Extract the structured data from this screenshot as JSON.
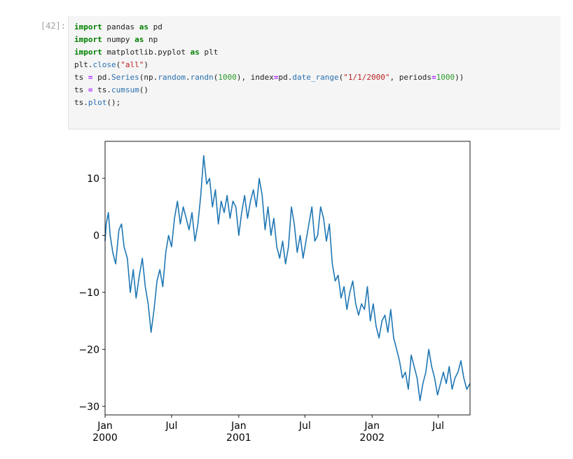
{
  "cell": {
    "prompt": "[42]:",
    "code_lines": [
      [
        {
          "t": "import",
          "c": "kw"
        },
        {
          "t": " pandas "
        },
        {
          "t": "as",
          "c": "kw"
        },
        {
          "t": " pd"
        }
      ],
      [
        {
          "t": "import",
          "c": "kw"
        },
        {
          "t": " numpy "
        },
        {
          "t": "as",
          "c": "kw"
        },
        {
          "t": " np"
        }
      ],
      [
        {
          "t": "import",
          "c": "kw"
        },
        {
          "t": " matplotlib.pyplot "
        },
        {
          "t": "as",
          "c": "kw"
        },
        {
          "t": " plt"
        }
      ],
      [
        {
          "t": "plt."
        },
        {
          "t": "close",
          "c": "fn"
        },
        {
          "t": "("
        },
        {
          "t": "\"all\"",
          "c": "str"
        },
        {
          "t": ")"
        }
      ],
      [
        {
          "t": "ts "
        },
        {
          "t": "=",
          "c": "op"
        },
        {
          "t": " pd."
        },
        {
          "t": "Series",
          "c": "fn"
        },
        {
          "t": "(np."
        },
        {
          "t": "random",
          "c": "fn"
        },
        {
          "t": "."
        },
        {
          "t": "randn",
          "c": "fn"
        },
        {
          "t": "("
        },
        {
          "t": "1000",
          "c": "num"
        },
        {
          "t": "), index"
        },
        {
          "t": "=",
          "c": "op"
        },
        {
          "t": "pd."
        },
        {
          "t": "date_range",
          "c": "fn"
        },
        {
          "t": "("
        },
        {
          "t": "\"1/1/2000\"",
          "c": "str"
        },
        {
          "t": ", periods"
        },
        {
          "t": "=",
          "c": "op"
        },
        {
          "t": "1000",
          "c": "num"
        },
        {
          "t": "))"
        }
      ],
      [
        {
          "t": "ts "
        },
        {
          "t": "=",
          "c": "op"
        },
        {
          "t": " ts."
        },
        {
          "t": "cumsum",
          "c": "fn"
        },
        {
          "t": "()"
        }
      ],
      [
        {
          "t": "ts."
        },
        {
          "t": "plot",
          "c": "fn"
        },
        {
          "t": "();"
        }
      ]
    ]
  },
  "chart_data": {
    "type": "line",
    "line_color": "#1f77b4",
    "xlim": [
      "2000-01-01",
      "2002-09-26"
    ],
    "ylim": [
      -31.5,
      16.5
    ],
    "y_ticks": [
      10,
      0,
      -10,
      -20,
      -30
    ],
    "y_tick_labels": [
      "10",
      "0",
      "−10",
      "−20",
      "−30"
    ],
    "x_ticks": [
      {
        "date": "2000-01-01",
        "label": "Jan",
        "sublabel": "2000"
      },
      {
        "date": "2000-07-01",
        "label": "Jul",
        "sublabel": ""
      },
      {
        "date": "2001-01-01",
        "label": "Jan",
        "sublabel": "2001"
      },
      {
        "date": "2001-07-01",
        "label": "Jul",
        "sublabel": ""
      },
      {
        "date": "2002-01-01",
        "label": "Jan",
        "sublabel": "2002"
      },
      {
        "date": "2002-07-01",
        "label": "Jul",
        "sublabel": ""
      }
    ],
    "series": [
      {
        "x": [
          "2000-01-01",
          "2000-01-04",
          "2000-01-10",
          "2000-01-15",
          "2000-01-22",
          "2000-01-30",
          "2000-02-08",
          "2000-02-15",
          "2000-02-22",
          "2000-03-02",
          "2000-03-10",
          "2000-03-18",
          "2000-03-26",
          "2000-04-04",
          "2000-04-12",
          "2000-04-20",
          "2000-04-28",
          "2000-05-06",
          "2000-05-14",
          "2000-05-22",
          "2000-05-30",
          "2000-06-07",
          "2000-06-15",
          "2000-06-23",
          "2000-07-01",
          "2000-07-09",
          "2000-07-17",
          "2000-07-25",
          "2000-08-02",
          "2000-08-10",
          "2000-08-18",
          "2000-08-26",
          "2000-09-03",
          "2000-09-11",
          "2000-09-19",
          "2000-09-27",
          "2000-10-05",
          "2000-10-13",
          "2000-10-21",
          "2000-10-29",
          "2000-11-06",
          "2000-11-14",
          "2000-11-22",
          "2000-11-30",
          "2000-12-08",
          "2000-12-16",
          "2000-12-24",
          "2001-01-01",
          "2001-01-09",
          "2001-01-17",
          "2001-01-25",
          "2001-02-02",
          "2001-02-10",
          "2001-02-18",
          "2001-02-26",
          "2001-03-06",
          "2001-03-14",
          "2001-03-22",
          "2001-03-30",
          "2001-04-07",
          "2001-04-15",
          "2001-04-23",
          "2001-05-01",
          "2001-05-09",
          "2001-05-17",
          "2001-05-25",
          "2001-06-02",
          "2001-06-10",
          "2001-06-18",
          "2001-06-26",
          "2001-07-04",
          "2001-07-12",
          "2001-07-20",
          "2001-07-28",
          "2001-08-05",
          "2001-08-13",
          "2001-08-21",
          "2001-08-29",
          "2001-09-06",
          "2001-09-14",
          "2001-09-22",
          "2001-09-30",
          "2001-10-08",
          "2001-10-16",
          "2001-10-24",
          "2001-11-01",
          "2001-11-09",
          "2001-11-17",
          "2001-11-25",
          "2001-12-03",
          "2001-12-11",
          "2001-12-19",
          "2001-12-27",
          "2002-01-04",
          "2002-01-12",
          "2002-01-20",
          "2002-01-28",
          "2002-02-05",
          "2002-02-13",
          "2002-02-21",
          "2002-03-01",
          "2002-03-09",
          "2002-03-17",
          "2002-03-25",
          "2002-04-02",
          "2002-04-10",
          "2002-04-18",
          "2002-04-26",
          "2002-05-04",
          "2002-05-12",
          "2002-05-20",
          "2002-05-28",
          "2002-06-05",
          "2002-06-13",
          "2002-06-21",
          "2002-06-29",
          "2002-07-07",
          "2002-07-15",
          "2002-07-23",
          "2002-07-31",
          "2002-08-08",
          "2002-08-16",
          "2002-08-24",
          "2002-09-01",
          "2002-09-09",
          "2002-09-17",
          "2002-09-26"
        ],
        "y": [
          -1,
          2,
          4,
          0,
          -3,
          -5,
          1,
          2,
          -2,
          -4,
          -10,
          -6,
          -11,
          -7,
          -4,
          -9,
          -12,
          -17,
          -13,
          -8,
          -6,
          -9,
          -3,
          0,
          -2,
          3,
          6,
          2,
          5,
          3,
          1,
          4,
          -1,
          2,
          7,
          14,
          9,
          10,
          5,
          8,
          2,
          6,
          4,
          7,
          3,
          6,
          5,
          0,
          4,
          7,
          3,
          6,
          8,
          5,
          10,
          7,
          1,
          5,
          0,
          3,
          -2,
          -4,
          -1,
          -5,
          -2,
          5,
          2,
          -3,
          0,
          -4,
          -1,
          2,
          5,
          -1,
          0,
          5,
          3,
          -1,
          2,
          -5,
          -8,
          -7,
          -11,
          -9,
          -13,
          -10,
          -8,
          -12,
          -14,
          -12,
          -13,
          -9,
          -15,
          -12,
          -16,
          -18,
          -15,
          -14,
          -17,
          -13,
          -18,
          -20,
          -22,
          -25,
          -24,
          -27,
          -21,
          -23,
          -25,
          -29,
          -26,
          -24,
          -20,
          -23,
          -25,
          -28,
          -26,
          -24,
          -26,
          -23,
          -27,
          -25,
          -24,
          -22,
          -25,
          -27,
          -26
        ]
      }
    ]
  }
}
